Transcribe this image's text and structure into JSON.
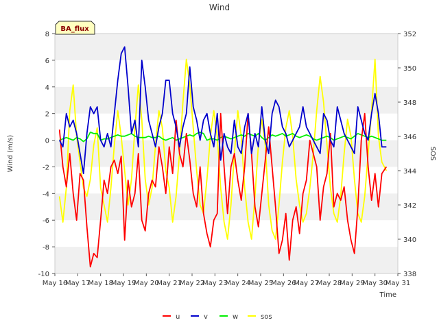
{
  "chart_data": {
    "type": "line",
    "title": "Wind",
    "badge": "BA_flux",
    "xlabel": "Time",
    "ylabel": "Wind (m/s)",
    "y2label": "SOS",
    "x_ticks": [
      "May 16",
      "May 17",
      "May 18",
      "May 19",
      "May 20",
      "May 21",
      "May 22",
      "May 23",
      "May 24",
      "May 25",
      "May 26",
      "May 27",
      "May 28",
      "May 29",
      "May 30",
      "May 31"
    ],
    "xlim": [
      16,
      31
    ],
    "ylim": [
      -10,
      8
    ],
    "y_ticks": [
      -10,
      -8,
      -6,
      -4,
      -2,
      0,
      2,
      4,
      6,
      8
    ],
    "y2lim": [
      338,
      352
    ],
    "y2_ticks": [
      338,
      340,
      342,
      344,
      346,
      348,
      350,
      352
    ],
    "grid": "horizontal bands",
    "legend_position": "bottom",
    "colors": {
      "u": "#ff0000",
      "v": "#0000cc",
      "w": "#00ee00",
      "sos": "#ffff00",
      "band": "#f0f0f0",
      "badge_bg": "#ffffc0"
    },
    "series": [
      {
        "name": "u",
        "axis": "left",
        "x": [
          16.2,
          16.35,
          16.5,
          16.65,
          16.8,
          16.95,
          17.1,
          17.25,
          17.4,
          17.55,
          17.7,
          17.85,
          18.0,
          18.15,
          18.3,
          18.45,
          18.6,
          18.75,
          18.9,
          19.05,
          19.2,
          19.35,
          19.5,
          19.65,
          19.8,
          19.95,
          20.1,
          20.25,
          20.4,
          20.55,
          20.7,
          20.85,
          21.0,
          21.15,
          21.3,
          21.45,
          21.6,
          21.75,
          21.9,
          22.05,
          22.2,
          22.35,
          22.5,
          22.65,
          22.8,
          22.95,
          23.1,
          23.25,
          23.4,
          23.55,
          23.7,
          23.85,
          24.0,
          24.15,
          24.3,
          24.45,
          24.6,
          24.75,
          24.9,
          25.05,
          25.2,
          25.35,
          25.5,
          25.65,
          25.8,
          25.95,
          26.1,
          26.25,
          26.4,
          26.55,
          26.7,
          26.85,
          27.0,
          27.15,
          27.3,
          27.45,
          27.6,
          27.75,
          27.9,
          28.05,
          28.2,
          28.35,
          28.5,
          28.65,
          28.8,
          28.95,
          29.1,
          29.25,
          29.4,
          29.55,
          29.7,
          29.85,
          30.0,
          30.15,
          30.3,
          30.5
        ],
        "y": [
          0.8,
          -2.0,
          -3.5,
          -1.0,
          -4.0,
          -6.0,
          -2.5,
          -3.0,
          -6.5,
          -9.5,
          -8.5,
          -8.8,
          -6.0,
          -3.0,
          -4.0,
          -2.0,
          -1.5,
          -2.5,
          -1.2,
          -7.5,
          -3.0,
          -5.0,
          -4.0,
          -1.0,
          -6.0,
          -6.8,
          -4.0,
          -3.0,
          -3.5,
          -0.5,
          -2.0,
          -4.0,
          -0.5,
          -2.5,
          1.5,
          -1.0,
          -2.0,
          0.5,
          -1.5,
          -4.0,
          -5.0,
          -2.0,
          -5.5,
          -7.0,
          -8.0,
          -6.0,
          -5.5,
          2.0,
          -2.0,
          -5.5,
          -2.0,
          -1.0,
          -3.0,
          -4.5,
          -2.0,
          2.0,
          -1.0,
          -5.0,
          -6.5,
          -4.0,
          -1.5,
          1.0,
          -2.0,
          -5.0,
          -8.5,
          -7.5,
          -5.5,
          -9.0,
          -6.0,
          -5.0,
          -7.0,
          -4.0,
          -3.0,
          0.0,
          -1.0,
          -2.0,
          -6.0,
          -3.5,
          -2.5,
          0.5,
          -5.0,
          -4.0,
          -4.5,
          -3.5,
          -6.0,
          -7.5,
          -8.5,
          -5.0,
          0.0,
          2.0,
          -2.0,
          -4.5,
          -2.5,
          -5.0,
          -2.5,
          -2.0
        ]
      },
      {
        "name": "v",
        "axis": "left",
        "x": [
          16.2,
          16.35,
          16.5,
          16.65,
          16.8,
          16.95,
          17.1,
          17.25,
          17.4,
          17.55,
          17.7,
          17.85,
          18.0,
          18.15,
          18.3,
          18.45,
          18.6,
          18.75,
          18.9,
          19.05,
          19.2,
          19.35,
          19.5,
          19.65,
          19.8,
          19.95,
          20.1,
          20.25,
          20.4,
          20.55,
          20.7,
          20.85,
          21.0,
          21.15,
          21.3,
          21.45,
          21.6,
          21.75,
          21.9,
          22.05,
          22.2,
          22.35,
          22.5,
          22.65,
          22.8,
          22.95,
          23.1,
          23.25,
          23.4,
          23.55,
          23.7,
          23.85,
          24.0,
          24.15,
          24.3,
          24.45,
          24.6,
          24.75,
          24.9,
          25.05,
          25.2,
          25.35,
          25.5,
          25.65,
          25.8,
          25.95,
          26.1,
          26.25,
          26.4,
          26.55,
          26.7,
          26.85,
          27.0,
          27.15,
          27.3,
          27.45,
          27.6,
          27.75,
          27.9,
          28.05,
          28.2,
          28.35,
          28.5,
          28.65,
          28.8,
          28.95,
          29.1,
          29.25,
          29.4,
          29.55,
          29.7,
          29.85,
          30.0,
          30.15,
          30.3,
          30.5
        ],
        "y": [
          0.0,
          -0.5,
          2.0,
          1.0,
          1.5,
          0.5,
          -1.0,
          -2.5,
          0.5,
          2.5,
          2.0,
          2.5,
          0.0,
          -0.5,
          0.5,
          -0.5,
          2.0,
          4.5,
          6.5,
          7.0,
          4.0,
          0.5,
          1.5,
          -0.5,
          6.0,
          4.0,
          1.5,
          0.5,
          -0.5,
          1.0,
          2.0,
          4.5,
          4.5,
          2.0,
          1.0,
          -0.5,
          1.0,
          2.0,
          5.5,
          2.5,
          1.5,
          0.0,
          1.5,
          2.0,
          0.5,
          -0.5,
          2.0,
          -1.5,
          0.5,
          -0.5,
          -1.0,
          1.5,
          -0.5,
          -1.0,
          1.0,
          2.0,
          -1.0,
          0.5,
          -0.5,
          2.5,
          0.0,
          -1.0,
          2.0,
          3.0,
          2.5,
          1.0,
          0.5,
          -0.5,
          0.0,
          0.5,
          1.0,
          2.5,
          1.0,
          0.5,
          0.0,
          -0.5,
          -1.0,
          2.0,
          1.5,
          0.0,
          -0.5,
          2.5,
          1.5,
          0.5,
          0.0,
          -0.5,
          -1.0,
          2.5,
          1.5,
          0.5,
          0.0,
          2.0,
          3.5,
          2.0,
          -0.5,
          -0.5
        ]
      },
      {
        "name": "w",
        "axis": "left",
        "x": [
          16.2,
          16.35,
          16.5,
          16.65,
          16.8,
          16.95,
          17.1,
          17.25,
          17.4,
          17.55,
          17.7,
          17.85,
          18.0,
          18.15,
          18.3,
          18.45,
          18.6,
          18.75,
          18.9,
          19.05,
          19.2,
          19.35,
          19.5,
          19.65,
          19.8,
          19.95,
          20.1,
          20.25,
          20.4,
          20.55,
          20.7,
          20.85,
          21.0,
          21.15,
          21.3,
          21.45,
          21.6,
          21.75,
          21.9,
          22.05,
          22.2,
          22.35,
          22.5,
          22.65,
          22.8,
          22.95,
          23.1,
          23.25,
          23.4,
          23.55,
          23.7,
          23.85,
          24.0,
          24.15,
          24.3,
          24.45,
          24.6,
          24.75,
          24.9,
          25.05,
          25.2,
          25.35,
          25.5,
          25.65,
          25.8,
          25.95,
          26.1,
          26.25,
          26.4,
          26.55,
          26.7,
          26.85,
          27.0,
          27.15,
          27.3,
          27.45,
          27.6,
          27.75,
          27.9,
          28.05,
          28.2,
          28.35,
          28.5,
          28.65,
          28.8,
          28.95,
          29.1,
          29.25,
          29.4,
          29.55,
          29.7,
          29.85,
          30.0,
          30.15,
          30.3,
          30.5
        ],
        "y": [
          0.0,
          0.1,
          0.2,
          0.1,
          0.0,
          0.2,
          0.1,
          -0.1,
          0.1,
          0.6,
          0.5,
          0.5,
          0.0,
          0.1,
          0.1,
          0.2,
          0.3,
          0.4,
          0.3,
          0.3,
          0.4,
          0.5,
          0.3,
          0.2,
          0.2,
          0.2,
          0.3,
          0.2,
          0.2,
          0.3,
          0.1,
          0.0,
          0.1,
          0.2,
          0.0,
          0.1,
          0.2,
          0.3,
          0.4,
          0.3,
          0.5,
          0.6,
          0.5,
          0.0,
          0.1,
          0.1,
          0.0,
          0.2,
          0.3,
          0.2,
          0.1,
          0.2,
          0.3,
          0.4,
          0.3,
          0.5,
          0.4,
          0.3,
          0.5,
          0.2,
          0.0,
          0.2,
          0.4,
          0.3,
          0.4,
          0.5,
          0.3,
          0.4,
          0.5,
          0.3,
          0.2,
          0.3,
          0.4,
          0.3,
          0.1,
          0.0,
          0.1,
          0.2,
          0.3,
          0.2,
          0.0,
          0.1,
          0.2,
          0.3,
          0.2,
          0.1,
          0.3,
          0.5,
          0.4,
          0.3,
          0.2,
          0.3,
          0.2,
          0.1,
          0.0,
          0.0
        ]
      },
      {
        "name": "sos",
        "axis": "right",
        "x": [
          16.2,
          16.35,
          16.5,
          16.65,
          16.8,
          16.95,
          17.1,
          17.25,
          17.4,
          17.55,
          17.7,
          17.85,
          18.0,
          18.15,
          18.3,
          18.45,
          18.6,
          18.75,
          18.9,
          19.05,
          19.2,
          19.35,
          19.5,
          19.65,
          19.8,
          19.95,
          20.1,
          20.25,
          20.4,
          20.55,
          20.7,
          20.85,
          21.0,
          21.15,
          21.3,
          21.45,
          21.6,
          21.75,
          21.9,
          22.05,
          22.2,
          22.35,
          22.5,
          22.65,
          22.8,
          22.95,
          23.1,
          23.25,
          23.4,
          23.55,
          23.7,
          23.85,
          24.0,
          24.15,
          24.3,
          24.45,
          24.6,
          24.75,
          24.9,
          25.05,
          25.2,
          25.35,
          25.5,
          25.65,
          25.8,
          25.95,
          26.1,
          26.25,
          26.4,
          26.55,
          26.7,
          26.85,
          27.0,
          27.15,
          27.3,
          27.45,
          27.6,
          27.75,
          27.9,
          28.05,
          28.2,
          28.35,
          28.5,
          28.65,
          28.8,
          28.95,
          29.1,
          29.25,
          29.4,
          29.55,
          29.7,
          29.85,
          30.0,
          30.15,
          30.3,
          30.5
        ],
        "y": [
          342.5,
          341.0,
          343.0,
          347.5,
          349.0,
          346.0,
          344.5,
          343.0,
          342.5,
          343.5,
          345.5,
          346.5,
          343.0,
          342.0,
          341.0,
          343.0,
          345.5,
          347.5,
          346.0,
          344.0,
          342.0,
          343.5,
          346.5,
          349.0,
          347.0,
          343.5,
          342.0,
          343.0,
          345.5,
          347.5,
          346.5,
          344.0,
          343.0,
          341.0,
          342.5,
          345.0,
          348.0,
          350.5,
          349.0,
          346.5,
          344.0,
          342.0,
          341.5,
          343.5,
          346.0,
          347.5,
          346.0,
          343.0,
          341.0,
          340.0,
          342.0,
          345.0,
          347.5,
          346.0,
          343.0,
          341.0,
          340.0,
          342.5,
          345.5,
          347.0,
          345.5,
          342.0,
          340.5,
          340.0,
          342.0,
          344.5,
          346.5,
          347.5,
          346.0,
          343.5,
          342.0,
          341.0,
          341.5,
          343.0,
          345.0,
          347.5,
          349.5,
          348.0,
          345.5,
          343.0,
          341.5,
          341.0,
          342.5,
          345.0,
          347.0,
          346.0,
          343.5,
          341.5,
          341.0,
          342.5,
          345.0,
          347.5,
          350.5,
          346.0,
          344.5,
          344.0
        ]
      }
    ]
  }
}
